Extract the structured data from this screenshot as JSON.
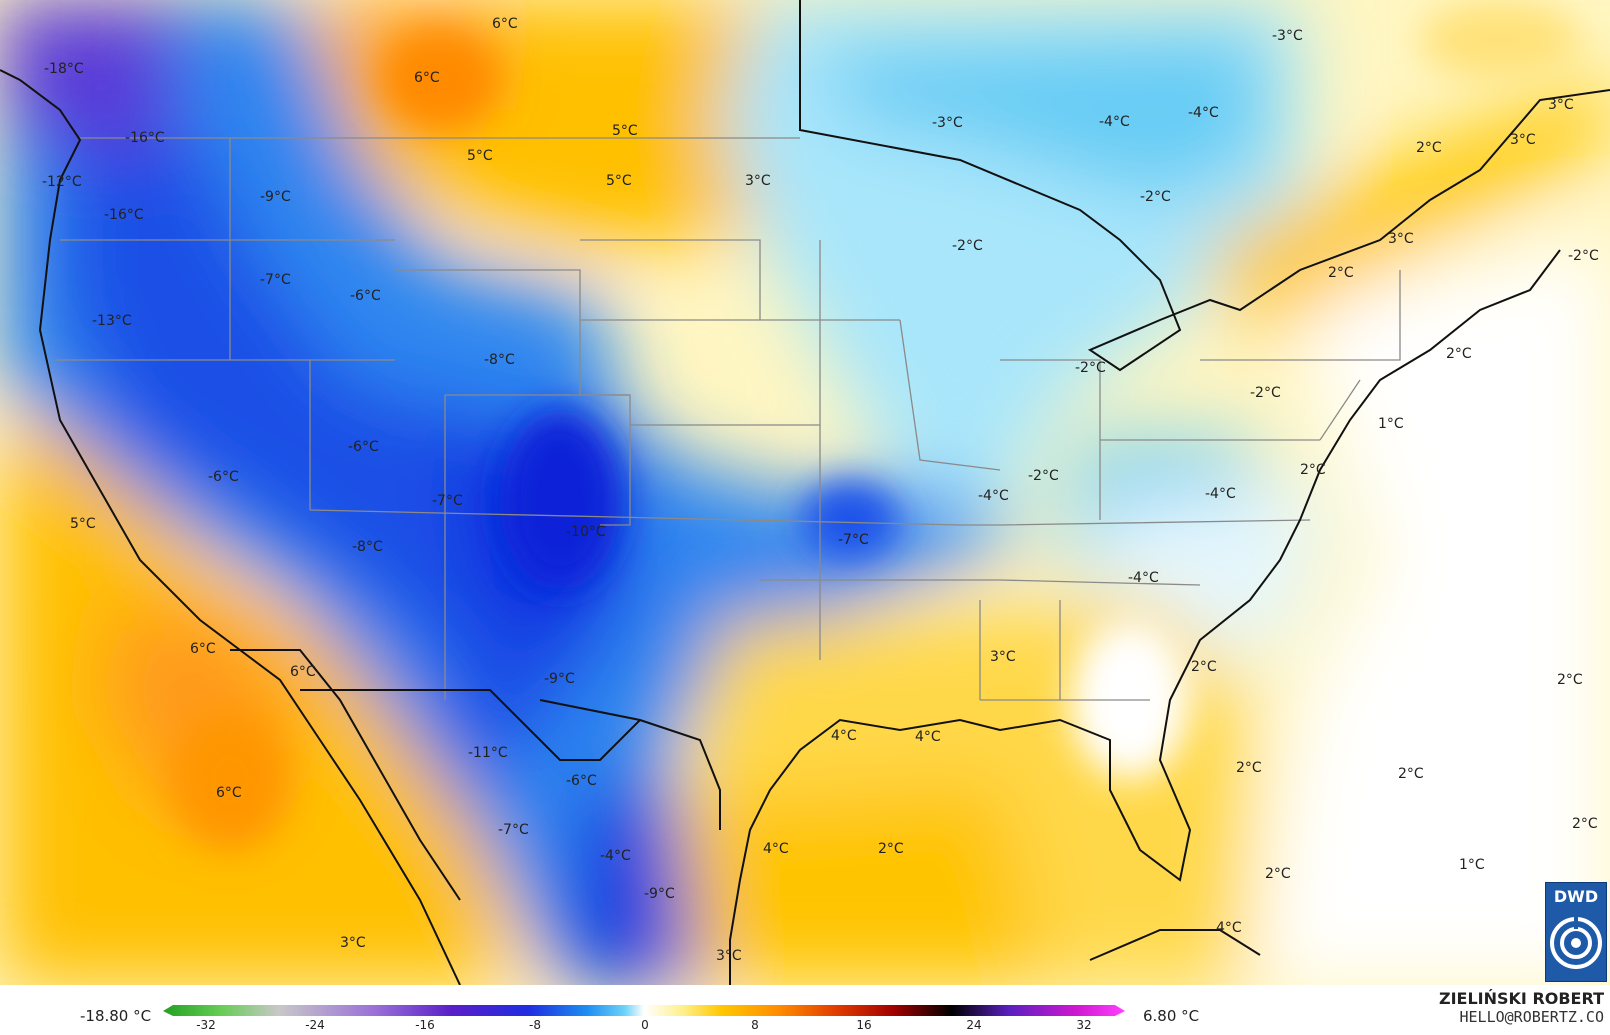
{
  "map": {
    "labels": [
      {
        "text": "-18°C"
      },
      {
        "text": "6°C"
      },
      {
        "text": "6°C"
      },
      {
        "text": "-16°C"
      },
      {
        "text": "5°C"
      },
      {
        "text": "5°C"
      },
      {
        "text": "5°C"
      },
      {
        "text": "3°C"
      },
      {
        "text": "-12°C"
      },
      {
        "text": "-9°C"
      },
      {
        "text": "-16°C"
      },
      {
        "text": "-7°C"
      },
      {
        "text": "-6°C"
      },
      {
        "text": "-13°C"
      },
      {
        "text": "-8°C"
      },
      {
        "text": "-6°C"
      },
      {
        "text": "-6°C"
      },
      {
        "text": "-7°C"
      },
      {
        "text": "5°C"
      },
      {
        "text": "-8°C"
      },
      {
        "text": "-10°C"
      },
      {
        "text": "-7°C"
      },
      {
        "text": "-3°C"
      },
      {
        "text": "-4°C"
      },
      {
        "text": "-4°C"
      },
      {
        "text": "-3°C"
      },
      {
        "text": "-2°C"
      },
      {
        "text": "-2°C"
      },
      {
        "text": "-2°C"
      },
      {
        "text": "-2°C"
      },
      {
        "text": "-4°C"
      },
      {
        "text": "-4°C"
      },
      {
        "text": "-4°C"
      },
      {
        "text": "3°C"
      },
      {
        "text": "3°C"
      },
      {
        "text": "2°C"
      },
      {
        "text": "-2°C"
      },
      {
        "text": "2°C"
      },
      {
        "text": "3°C"
      },
      {
        "text": "2°C"
      },
      {
        "text": "1°C"
      },
      {
        "text": "2°C"
      },
      {
        "text": "2°C"
      },
      {
        "text": "6°C"
      },
      {
        "text": "6°C"
      },
      {
        "text": "-9°C"
      },
      {
        "text": "-11°C"
      },
      {
        "text": "-6°C"
      },
      {
        "text": "6°C"
      },
      {
        "text": "-7°C"
      },
      {
        "text": "3°C"
      },
      {
        "text": "4°C"
      },
      {
        "text": "4°C"
      },
      {
        "text": "4°C"
      },
      {
        "text": "2°C"
      },
      {
        "text": "2°C"
      },
      {
        "text": "2°C"
      },
      {
        "text": "2°C"
      },
      {
        "text": "1°C"
      },
      {
        "text": "2°C"
      },
      {
        "text": "-9°C"
      },
      {
        "text": "4°C"
      },
      {
        "text": "3°C"
      },
      {
        "text": "-4°C"
      },
      {
        "text": "-2°C"
      },
      {
        "text": "3°C"
      },
      {
        "text": "2°C"
      }
    ]
  },
  "legend": {
    "min_label": "-18.80 °C",
    "max_label": "6.80 °C",
    "ticks": [
      "-32",
      "-24",
      "-16",
      "-8",
      "0",
      "8",
      "16",
      "24",
      "32"
    ],
    "colors": [
      "#22a022",
      "#66cc55",
      "#c8c8c8",
      "#9a70d8",
      "#5a1ec8",
      "#1e2ee0",
      "#1e8cf0",
      "#6cd2f8",
      "#ffffff",
      "#fff08c",
      "#ffc800",
      "#ff8c00",
      "#e03c00",
      "#a00000",
      "#000000",
      "#5a20c0",
      "#d018d0",
      "#ff40ff"
    ]
  },
  "credit": {
    "author": "ZIELIŃSKI ROBERT",
    "email": "HELLO@ROBERTZ.CO",
    "logo_text": "DWD"
  }
}
